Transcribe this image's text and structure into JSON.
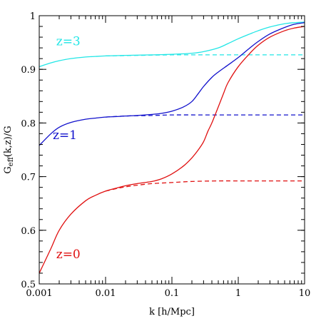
{
  "chart_data": {
    "type": "line",
    "title": "",
    "xlabel": "k [h/Mpc]",
    "ylabel_main": "G",
    "ylabel_sub": "eff",
    "ylabel_tail": "(k,z)/G",
    "xscale": "log",
    "xlim": [
      0.001,
      10
    ],
    "ylim": [
      0.5,
      1.0
    ],
    "x_ticks": [
      {
        "value": 0.001,
        "label": "0.001"
      },
      {
        "value": 0.01,
        "label": "0.01"
      },
      {
        "value": 0.1,
        "label": "0.1"
      },
      {
        "value": 1,
        "label": "1"
      },
      {
        "value": 10,
        "label": "10"
      }
    ],
    "y_ticks": [
      {
        "value": 0.5,
        "label": "0.5"
      },
      {
        "value": 0.6,
        "label": "0.6"
      },
      {
        "value": 0.7,
        "label": "0.7"
      },
      {
        "value": 0.8,
        "label": "0.8"
      },
      {
        "value": 0.9,
        "label": "0.9"
      },
      {
        "value": 1.0,
        "label": "1"
      }
    ],
    "grid": false,
    "series": [
      {
        "name": "z=3",
        "color": "#22e6e6",
        "x": [
          0.001,
          0.0015,
          0.002,
          0.003,
          0.005,
          0.007,
          0.01,
          0.02,
          0.05,
          0.1,
          0.2,
          0.3,
          0.5,
          0.7,
          1.0,
          1.5,
          2,
          3,
          5,
          7,
          10
        ],
        "y": [
          0.905,
          0.912,
          0.916,
          0.92,
          0.923,
          0.924,
          0.925,
          0.926,
          0.927,
          0.928,
          0.93,
          0.933,
          0.94,
          0.948,
          0.957,
          0.966,
          0.972,
          0.979,
          0.985,
          0.987,
          0.988
        ]
      },
      {
        "name": "z=3 (dashed)",
        "color": "#22e6e6",
        "dashed": true,
        "x": [
          0.01,
          0.03,
          0.1,
          0.3,
          1,
          3,
          10
        ],
        "y": [
          0.925,
          0.926,
          0.927,
          0.927,
          0.927,
          0.927,
          0.927
        ]
      },
      {
        "name": "z=1",
        "color": "#1010cc",
        "x": [
          0.001,
          0.0015,
          0.002,
          0.003,
          0.005,
          0.007,
          0.01,
          0.015,
          0.02,
          0.03,
          0.05,
          0.07,
          0.1,
          0.15,
          0.2,
          0.25,
          0.3,
          0.4,
          0.5,
          0.7,
          1.0,
          1.5,
          2,
          3,
          5,
          7,
          10
        ],
        "y": [
          0.758,
          0.78,
          0.792,
          0.801,
          0.807,
          0.809,
          0.811,
          0.812,
          0.813,
          0.814,
          0.816,
          0.818,
          0.822,
          0.83,
          0.84,
          0.855,
          0.868,
          0.885,
          0.895,
          0.908,
          0.922,
          0.94,
          0.952,
          0.966,
          0.978,
          0.984,
          0.987
        ]
      },
      {
        "name": "z=1 (dashed)",
        "color": "#1010cc",
        "dashed": true,
        "x": [
          0.01,
          0.02,
          0.05,
          0.1,
          0.3,
          1,
          3,
          10
        ],
        "y": [
          0.811,
          0.813,
          0.814,
          0.815,
          0.815,
          0.815,
          0.815,
          0.815
        ]
      },
      {
        "name": "z=0",
        "color": "#e01010",
        "x": [
          0.001,
          0.0015,
          0.002,
          0.003,
          0.005,
          0.007,
          0.01,
          0.015,
          0.02,
          0.03,
          0.05,
          0.07,
          0.1,
          0.15,
          0.2,
          0.25,
          0.3,
          0.35,
          0.4,
          0.5,
          0.6,
          0.7,
          1.0,
          1.5,
          2,
          3,
          5,
          7,
          10
        ],
        "y": [
          0.52,
          0.566,
          0.6,
          0.63,
          0.655,
          0.665,
          0.673,
          0.679,
          0.683,
          0.687,
          0.691,
          0.696,
          0.705,
          0.72,
          0.735,
          0.75,
          0.765,
          0.785,
          0.8,
          0.83,
          0.855,
          0.875,
          0.905,
          0.93,
          0.945,
          0.96,
          0.972,
          0.977,
          0.98
        ]
      },
      {
        "name": "z=0 (dashed)",
        "color": "#e01010",
        "dashed": true,
        "x": [
          0.01,
          0.015,
          0.02,
          0.03,
          0.05,
          0.1,
          0.2,
          0.5,
          1,
          3,
          10
        ],
        "y": [
          0.673,
          0.678,
          0.681,
          0.684,
          0.687,
          0.689,
          0.691,
          0.692,
          0.692,
          0.692,
          0.692
        ]
      }
    ],
    "annotations": [
      {
        "text": "z=3",
        "color": "#22e6e6",
        "x": 0.0018,
        "y": 0.945
      },
      {
        "text": "z=1",
        "color": "#1010cc",
        "x": 0.0016,
        "y": 0.77
      },
      {
        "text": "z=0",
        "color": "#e01010",
        "x": 0.0018,
        "y": 0.548
      }
    ]
  }
}
